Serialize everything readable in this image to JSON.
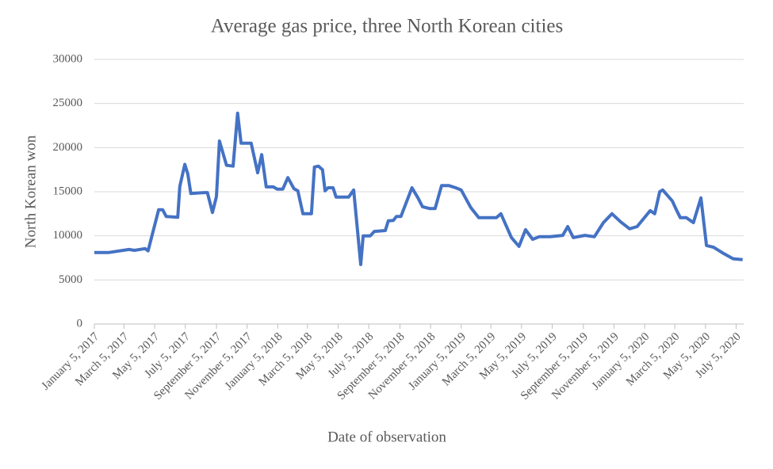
{
  "chart_data": {
    "type": "line",
    "title": "Average gas price, three North Korean cities",
    "x_label": "Date of observation",
    "y_label": "North Korean won",
    "x": [
      "2017-01-05",
      "2017-02-02",
      "2017-03-15",
      "2017-03-26",
      "2017-04-16",
      "2017-04-22",
      "2017-05-13",
      "2017-05-21",
      "2017-05-28",
      "2017-06-20",
      "2017-06-24",
      "2017-07-04",
      "2017-07-10",
      "2017-07-16",
      "2017-08-12",
      "2017-08-18",
      "2017-08-28",
      "2017-09-05",
      "2017-09-11",
      "2017-09-25",
      "2017-10-08",
      "2017-10-17",
      "2017-10-24",
      "2017-11-13",
      "2017-11-26",
      "2017-12-04",
      "2017-12-13",
      "2017-12-27",
      "2018-01-04",
      "2018-01-15",
      "2018-01-25",
      "2018-02-06",
      "2018-02-14",
      "2018-02-24",
      "2018-03-13",
      "2018-03-19",
      "2018-03-27",
      "2018-04-04",
      "2018-04-09",
      "2018-04-15",
      "2018-04-25",
      "2018-05-01",
      "2018-05-26",
      "2018-06-05",
      "2018-06-19",
      "2018-06-24",
      "2018-07-08",
      "2018-07-16",
      "2018-08-07",
      "2018-08-13",
      "2018-08-23",
      "2018-08-29",
      "2018-09-07",
      "2018-09-29",
      "2018-10-11",
      "2018-10-20",
      "2018-11-03",
      "2018-11-14",
      "2018-11-27",
      "2018-12-11",
      "2018-12-25",
      "2019-01-05",
      "2019-01-24",
      "2019-02-09",
      "2019-03-16",
      "2019-03-25",
      "2019-04-15",
      "2019-04-30",
      "2019-05-13",
      "2019-05-27",
      "2019-06-09",
      "2019-07-01",
      "2019-07-26",
      "2019-08-05",
      "2019-08-16",
      "2019-09-08",
      "2019-09-27",
      "2019-10-15",
      "2019-11-01",
      "2019-11-18",
      "2019-12-06",
      "2019-12-21",
      "2020-01-16",
      "2020-01-25",
      "2020-02-04",
      "2020-02-10",
      "2020-02-29",
      "2020-03-08",
      "2020-03-16",
      "2020-03-28",
      "2020-04-11",
      "2020-04-26",
      "2020-05-07",
      "2020-05-21",
      "2020-06-10",
      "2020-06-29",
      "2020-07-18"
    ],
    "series": [
      {
        "name": "Average gas price",
        "color": "#4472c4",
        "values": [
          8100,
          8100,
          8450,
          8350,
          8550,
          8300,
          12950,
          12950,
          12200,
          12100,
          15600,
          18100,
          17000,
          14800,
          14900,
          14900,
          12650,
          14450,
          20750,
          18000,
          17900,
          23900,
          20500,
          20500,
          17150,
          19200,
          15550,
          15550,
          15300,
          15300,
          16600,
          15350,
          15100,
          12500,
          12500,
          17800,
          17900,
          17500,
          15100,
          15450,
          15450,
          14400,
          14400,
          15200,
          6750,
          10000,
          10000,
          10500,
          10600,
          11700,
          11750,
          12200,
          12200,
          15450,
          14300,
          13300,
          13100,
          13100,
          15700,
          15700,
          15450,
          15200,
          13200,
          12050,
          12050,
          12500,
          9800,
          8800,
          10700,
          9600,
          9900,
          9900,
          10050,
          11050,
          9800,
          10050,
          9900,
          11500,
          12500,
          11600,
          10800,
          11050,
          12850,
          12500,
          15000,
          15200,
          13950,
          12950,
          12050,
          12050,
          11500,
          14300,
          8900,
          8700,
          8000,
          7400,
          7300
        ]
      }
    ],
    "xlim": [
      "2017-01-05",
      "2020-07-20"
    ],
    "xticks": [
      {
        "value": "2017-01-05",
        "label": "January 5, 2017"
      },
      {
        "value": "2017-03-05",
        "label": "March 5, 2017"
      },
      {
        "value": "2017-05-05",
        "label": "May 5, 2017"
      },
      {
        "value": "2017-07-05",
        "label": "July 5, 2017"
      },
      {
        "value": "2017-09-05",
        "label": "September 5, 2017"
      },
      {
        "value": "2017-11-05",
        "label": "November 5, 2017"
      },
      {
        "value": "2018-01-05",
        "label": "January 5, 2018"
      },
      {
        "value": "2018-03-05",
        "label": "March 5, 2018"
      },
      {
        "value": "2018-05-05",
        "label": "May 5, 2018"
      },
      {
        "value": "2018-07-05",
        "label": "July 5, 2018"
      },
      {
        "value": "2018-09-05",
        "label": "September 5, 2018"
      },
      {
        "value": "2018-11-05",
        "label": "November 5, 2018"
      },
      {
        "value": "2019-01-05",
        "label": "January 5, 2019"
      },
      {
        "value": "2019-03-05",
        "label": "March 5, 2019"
      },
      {
        "value": "2019-05-05",
        "label": "May 5, 2019"
      },
      {
        "value": "2019-07-05",
        "label": "July 5, 2019"
      },
      {
        "value": "2019-09-05",
        "label": "September 5, 2019"
      },
      {
        "value": "2019-11-05",
        "label": "November 5, 2019"
      },
      {
        "value": "2020-01-05",
        "label": "January 5, 2020"
      },
      {
        "value": "2020-03-05",
        "label": "March 5, 2020"
      },
      {
        "value": "2020-05-05",
        "label": "May 5, 2020"
      },
      {
        "value": "2020-07-05",
        "label": "July 5, 2020"
      }
    ],
    "ylim": [
      0,
      30000
    ],
    "yticks": [
      0,
      5000,
      10000,
      15000,
      20000,
      25000,
      30000
    ],
    "grid": true
  }
}
